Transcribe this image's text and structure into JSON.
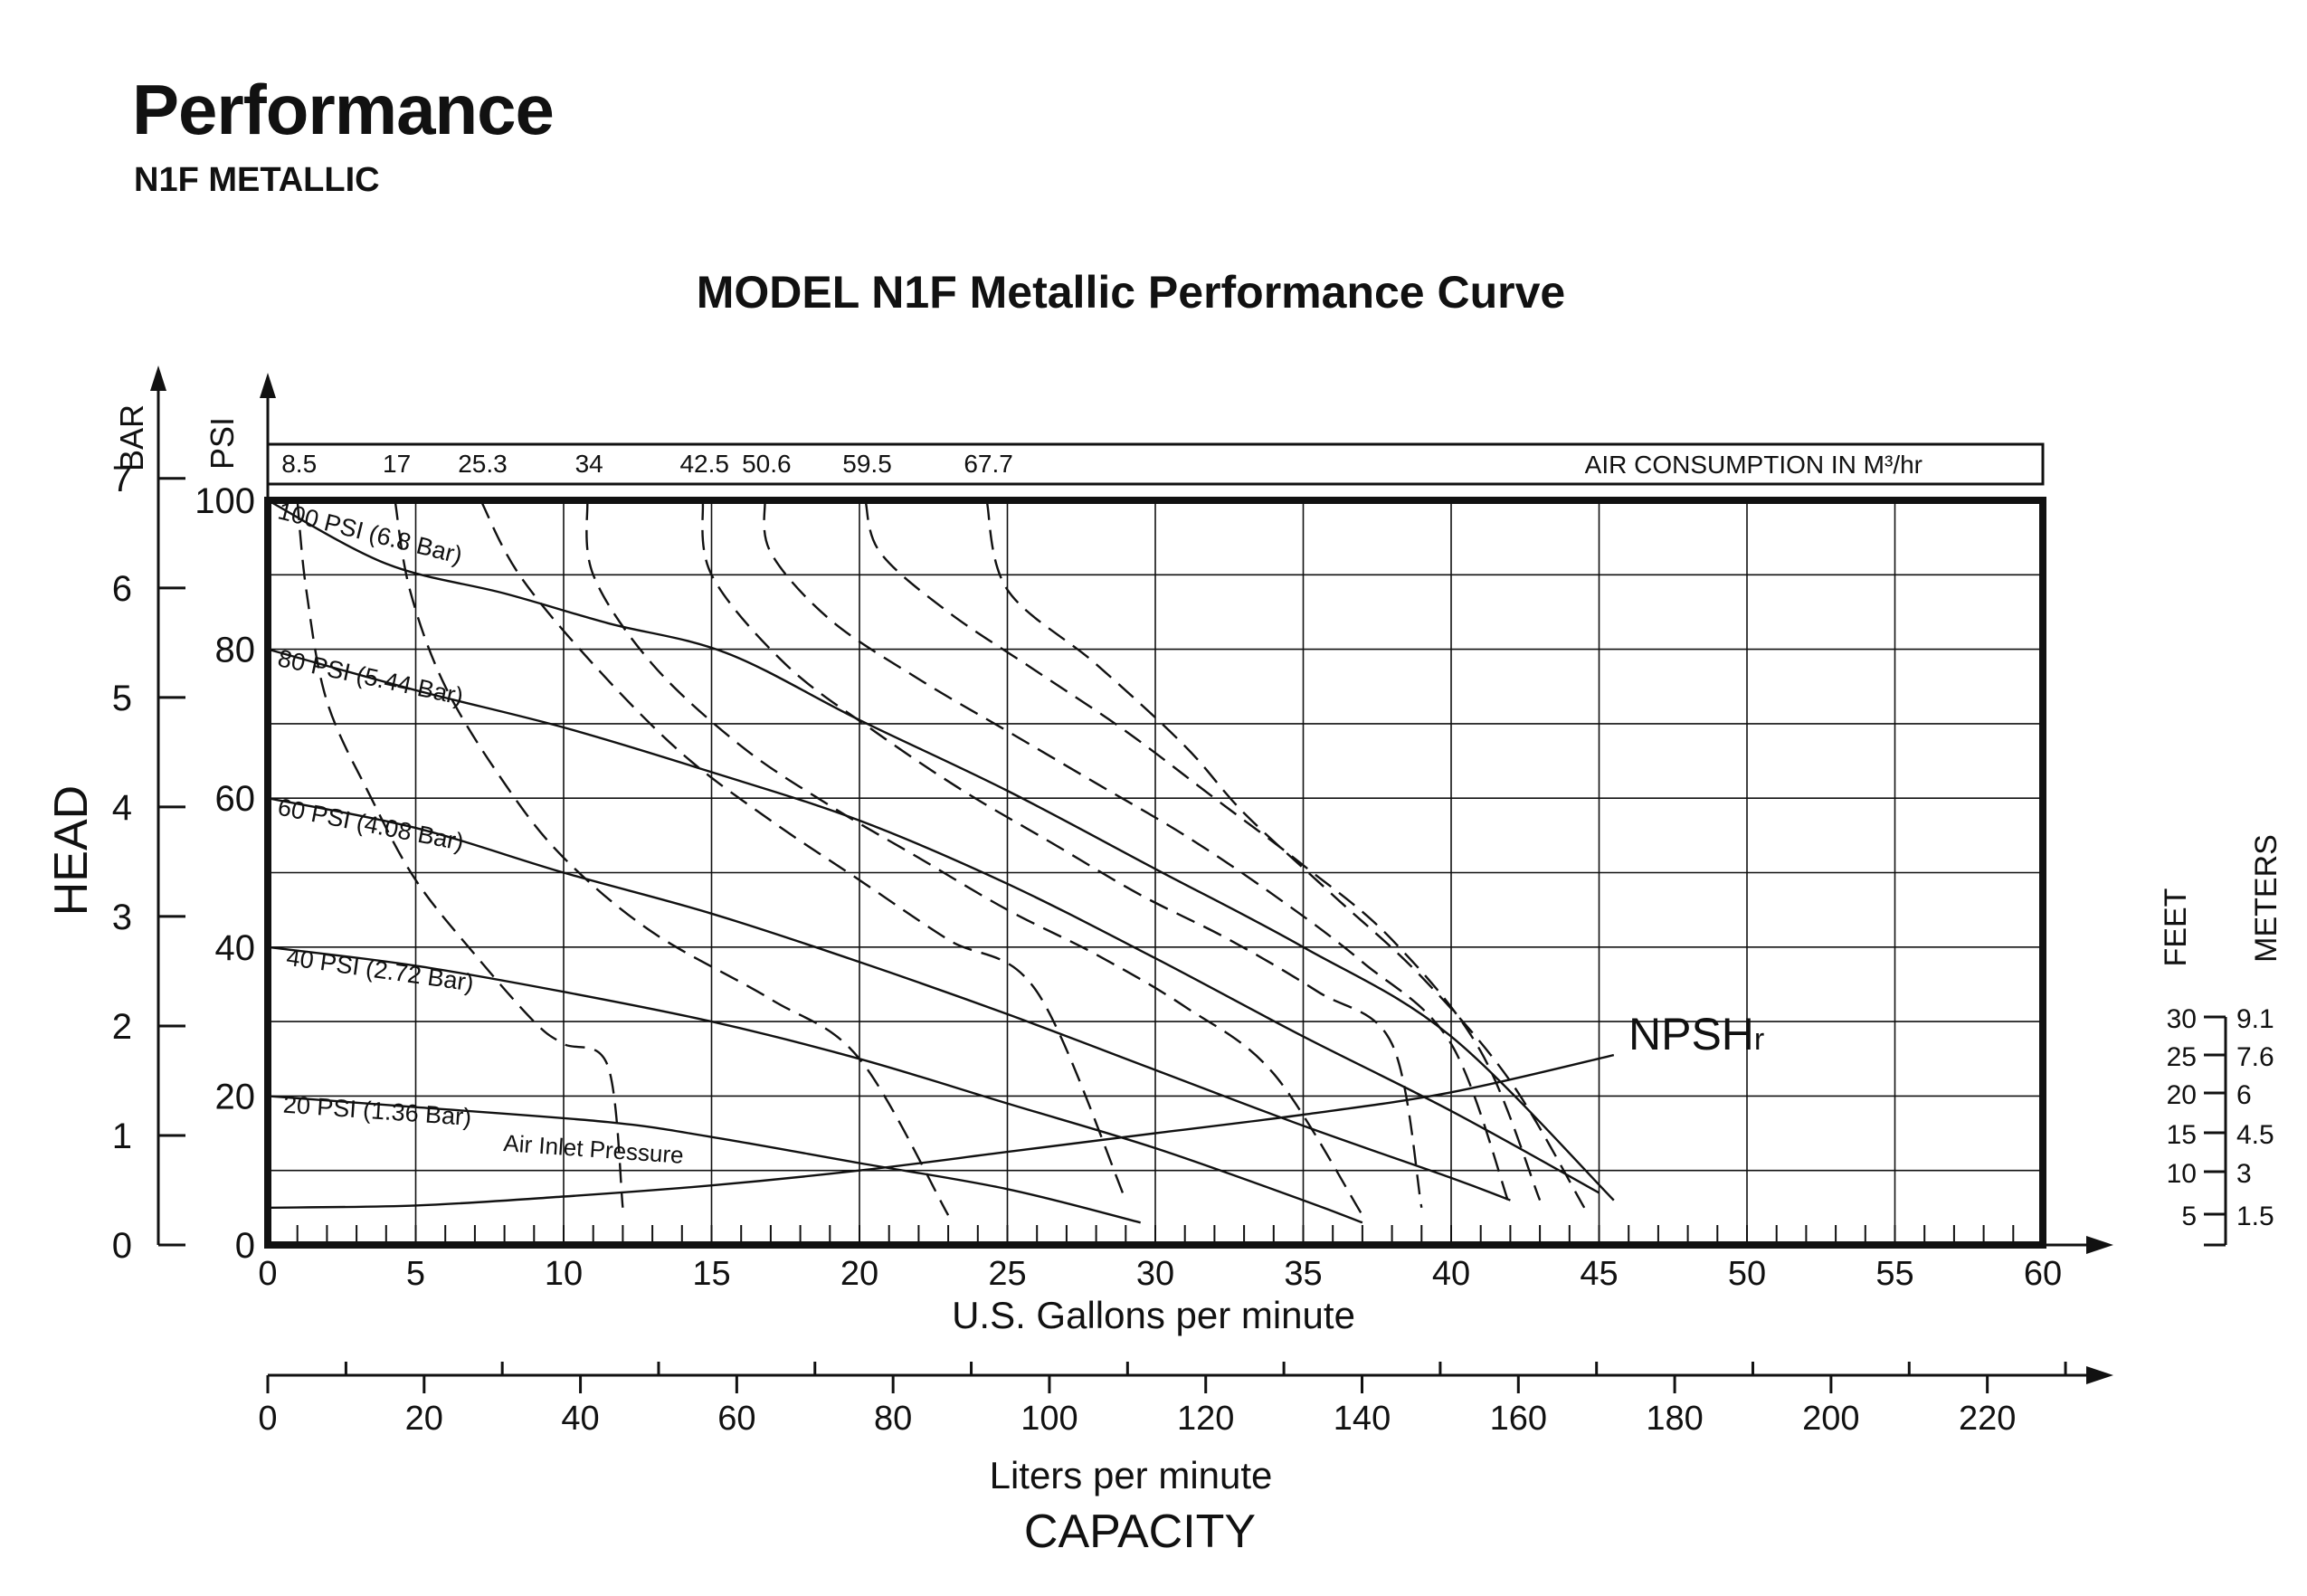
{
  "header": {
    "title": "Performance",
    "subtitle": "N1F METALLIC"
  },
  "chart_data": {
    "type": "line",
    "title": "MODEL N1F Metallic Performance Curve",
    "x_axis": {
      "label": "U.S. Gallons per minute",
      "range": [
        0,
        60
      ],
      "ticks": [
        "0",
        "5",
        "10",
        "15",
        "20",
        "25",
        "30",
        "35",
        "40",
        "45",
        "50",
        "55",
        "60"
      ]
    },
    "x2_axis": {
      "label": "Liters per minute",
      "ticks": [
        "0",
        "20",
        "40",
        "60",
        "80",
        "100",
        "120",
        "140",
        "160",
        "180",
        "200",
        "220"
      ]
    },
    "capacity_label": "CAPACITY",
    "y_axis": {
      "label": "HEAD",
      "unit_psi": "PSI",
      "unit_bar": "BAR",
      "range": [
        0,
        100
      ],
      "psi_ticks": [
        "0",
        "20",
        "40",
        "60",
        "80",
        "100"
      ],
      "bar_ticks": [
        "0",
        "1",
        "2",
        "3",
        "4",
        "5",
        "6",
        "7"
      ]
    },
    "npsh_axis": {
      "feet_label": "FEET",
      "meters_label": "METERS",
      "feet_ticks": [
        "30",
        "25",
        "20",
        "15",
        "10",
        "5"
      ],
      "meters_ticks": [
        "9.1",
        "7.6",
        "6",
        "4.5",
        "3",
        "1.5"
      ]
    },
    "air_consumption": {
      "label": "AIR CONSUMPTION IN M³/hr",
      "values": [
        "8.5",
        "17",
        "25.3",
        "34",
        "42.5",
        "50.6",
        "59.5",
        "67.7"
      ]
    },
    "annotation_air": "Air Inlet Pressure",
    "npsh_label": "NPSH",
    "npsh_sub": "r",
    "grid": true,
    "series": [
      {
        "name": "100 PSI (6.8 Bar)",
        "points": [
          [
            0,
            100
          ],
          [
            4,
            91.5
          ],
          [
            8,
            87.5
          ],
          [
            11.5,
            83.5
          ],
          [
            15.5,
            79.5
          ],
          [
            20,
            70.5
          ],
          [
            25,
            61
          ],
          [
            30,
            50.5
          ],
          [
            35,
            40
          ],
          [
            40,
            28
          ],
          [
            45.5,
            6
          ]
        ]
      },
      {
        "name": "80 PSI (5.44 Bar)",
        "points": [
          [
            0,
            80
          ],
          [
            5,
            74.5
          ],
          [
            10,
            69.5
          ],
          [
            15,
            63.5
          ],
          [
            20,
            57
          ],
          [
            25,
            48.5
          ],
          [
            30,
            38.5
          ],
          [
            35,
            28
          ],
          [
            40,
            18
          ],
          [
            45,
            7
          ]
        ]
      },
      {
        "name": "60 PSI (4.08 Bar)",
        "points": [
          [
            0,
            60
          ],
          [
            5,
            56
          ],
          [
            10,
            50
          ],
          [
            15,
            44.5
          ],
          [
            20,
            38
          ],
          [
            25,
            31
          ],
          [
            30,
            23.5
          ],
          [
            35,
            16
          ],
          [
            40,
            9
          ],
          [
            42,
            6
          ]
        ]
      },
      {
        "name": "40 PSI (2.72 Bar)",
        "points": [
          [
            0,
            40
          ],
          [
            5,
            37.5
          ],
          [
            10,
            34
          ],
          [
            15,
            30
          ],
          [
            20,
            25
          ],
          [
            25,
            19
          ],
          [
            30,
            13
          ],
          [
            35,
            6
          ],
          [
            37,
            3
          ]
        ]
      },
      {
        "name": "20 PSI (1.36 Bar)",
        "points": [
          [
            0,
            20
          ],
          [
            5,
            18.5
          ],
          [
            11.5,
            16.5
          ],
          [
            15,
            14.5
          ],
          [
            20,
            11
          ],
          [
            25,
            7.5
          ],
          [
            29.5,
            3
          ]
        ]
      },
      {
        "name": "NPSHr",
        "points": [
          [
            0,
            5
          ],
          [
            5,
            5.3
          ],
          [
            10,
            6.5
          ],
          [
            15,
            8
          ],
          [
            20,
            10
          ],
          [
            25,
            12.5
          ],
          [
            30,
            15
          ],
          [
            35,
            17.5
          ],
          [
            40,
            20.5
          ],
          [
            45.5,
            25.5
          ]
        ]
      }
    ],
    "air_consumption_curves": [
      {
        "value": "8.5",
        "points": [
          [
            1,
            100
          ],
          [
            1.3,
            88
          ],
          [
            2,
            73
          ],
          [
            3.5,
            60
          ],
          [
            5,
            49
          ],
          [
            7,
            39
          ],
          [
            9,
            30
          ],
          [
            10,
            27
          ],
          [
            11.5,
            24
          ],
          [
            12,
            5
          ]
        ]
      },
      {
        "name": "17",
        "value": "17",
        "points": [
          [
            4.3,
            100
          ],
          [
            4.8,
            88
          ],
          [
            6,
            75
          ],
          [
            8,
            62
          ],
          [
            10,
            52
          ],
          [
            13,
            42
          ],
          [
            17,
            33
          ],
          [
            20,
            25
          ],
          [
            23,
            4
          ]
        ]
      },
      {
        "value": "25.3",
        "points": [
          [
            7.2,
            100
          ],
          [
            8.5,
            90
          ],
          [
            11,
            78
          ],
          [
            14,
            66
          ],
          [
            17,
            57
          ],
          [
            20,
            49
          ],
          [
            23,
            41
          ],
          [
            26,
            34
          ],
          [
            29,
            6
          ]
        ]
      },
      {
        "value": "34",
        "points": [
          [
            10.8,
            100
          ],
          [
            11,
            90
          ],
          [
            13,
            78
          ],
          [
            16,
            67
          ],
          [
            19,
            59
          ],
          [
            22,
            52
          ],
          [
            25,
            45
          ],
          [
            28,
            39
          ],
          [
            31,
            32
          ],
          [
            34,
            23
          ],
          [
            37,
            4
          ]
        ]
      },
      {
        "value": "42.5",
        "points": [
          [
            14.7,
            100
          ],
          [
            15,
            90
          ],
          [
            17.5,
            78
          ],
          [
            20.5,
            69
          ],
          [
            23.5,
            61
          ],
          [
            26.5,
            54
          ],
          [
            29.5,
            47
          ],
          [
            32.5,
            41
          ],
          [
            35.5,
            34
          ],
          [
            38,
            27
          ],
          [
            39,
            5
          ]
        ]
      },
      {
        "value": "50.6",
        "points": [
          [
            16.8,
            100
          ],
          [
            17,
            93
          ],
          [
            19,
            84
          ],
          [
            22,
            76
          ],
          [
            25,
            69
          ],
          [
            28,
            62
          ],
          [
            31,
            55
          ],
          [
            34,
            47
          ],
          [
            37,
            38
          ],
          [
            40,
            27
          ],
          [
            42,
            5
          ]
        ]
      },
      {
        "value": "59.5",
        "points": [
          [
            20.2,
            100
          ],
          [
            20.7,
            93
          ],
          [
            23,
            85
          ],
          [
            26,
            77
          ],
          [
            29,
            69
          ],
          [
            32,
            60
          ],
          [
            35,
            51
          ],
          [
            38,
            41
          ],
          [
            41,
            26
          ],
          [
            43,
            6
          ]
        ]
      },
      {
        "value": "67.7",
        "points": [
          [
            24.3,
            100
          ],
          [
            25,
            88
          ],
          [
            28,
            78
          ],
          [
            31,
            67
          ],
          [
            33,
            58
          ],
          [
            36,
            47
          ],
          [
            39,
            36
          ],
          [
            42,
            22
          ],
          [
            44.5,
            5
          ]
        ]
      }
    ]
  }
}
